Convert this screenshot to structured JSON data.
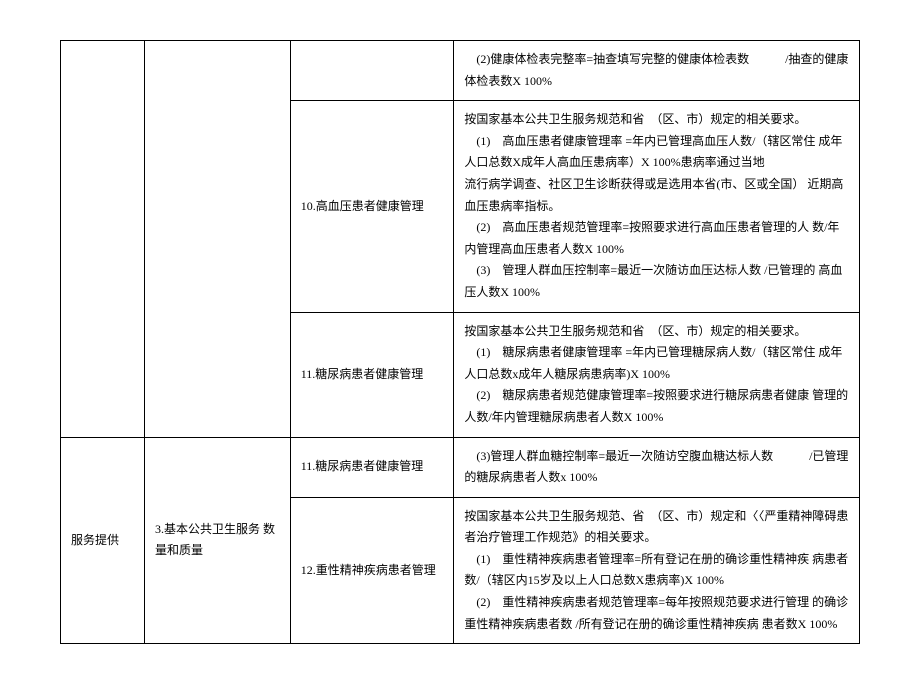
{
  "table": {
    "rows": [
      {
        "col3": "",
        "col4": "　(2)健康体检表完整率=抽查填写完整的健康体检表数　　　/抽查的健康体检表数X 100%",
        "col1_rowspan": 3,
        "col2_rowspan": 3,
        "col1": "",
        "col2": ""
      },
      {
        "col3": "10.高血压患者健康管理",
        "col4": "按国家基本公共卫生服务规范和省　（区、市）规定的相关要求。\n　(1)　高血压患者健康管理率 =年内已管理高血压人数/（辖区常住 成年人口总数X成年人高血压患病率）X 100%患病率通过当地\n流行病学调查、社区卫生诊断获得或是选用本省(市、区或全国） 近期高血压患病率指标。\n　(2)　高血压患者规范管理率=按照要求进行高血压患者管理的人 数/年内管理高血压患者人数X 100%\n　(3)　管理人群血压控制率=最近一次随访血压达标人数 /已管理的 高血压人数X 100%"
      },
      {
        "col3": "11.糖尿病患者健康管理",
        "col4": "按国家基本公共卫生服务规范和省　（区、市）规定的相关要求。\n　(1)　糖尿病患者健康管理率 =年内已管理糖尿病人数/（辖区常住 成年人口总数x成年人糖尿病患病率)X 100%\n　(2)　糖尿病患者规范健康管理率=按照要求进行糖尿病患者健康 管理的人数/年内管理糖尿病患者人数X 100%"
      },
      {
        "col1": "服务提供",
        "col2": "3.基本公共卫生服务 数量和质量",
        "col3": "11.糖尿病患者健康管理",
        "col4": "　(3)管理人群血糖控制率=最近一次随访空腹血糖达标人数　　　/已管理的糖尿病患者人数x 100%",
        "col1_rowspan": 2,
        "col2_rowspan": 2
      },
      {
        "col3": "12.重性精神疾病患者管理",
        "col4": "按国家基本公共卫生服务规范、省　（区、市）规定和〈〈严重精神障碍患者治疗管理工作规范》的相关要求。\n　(1)　重性精神疾病患者管理率=所有登记在册的确诊重性精神疾 病患者数/（辖区内15岁及以上人口总数X患病率)X 100%\n　(2)　重性精神疾病患者规范管理率=每年按照规范要求进行管理 的确诊重性精神疾病患者数 /所有登记在册的确诊重性精神疾病 患者数X 100%"
      }
    ]
  }
}
